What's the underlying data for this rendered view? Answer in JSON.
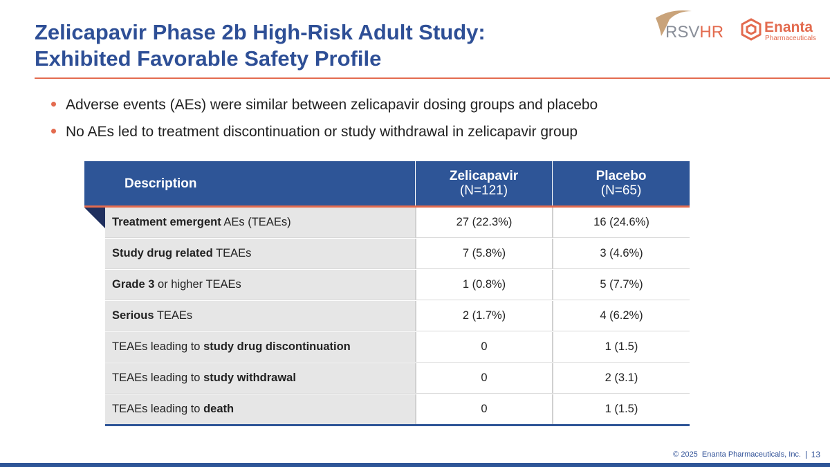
{
  "header": {
    "title": [
      "Zelicapavir Phase 2b High-Risk Adult Study:",
      "Exhibited Favorable Safety Profile"
    ],
    "logos": {
      "rsvhr": [
        "RSV",
        "HR"
      ],
      "enanta": {
        "name": "Enanta",
        "sub": "Pharmaceuticals"
      }
    }
  },
  "bullets": [
    "Adverse events (AEs) were similar between zelicapavir dosing groups and placebo",
    "No AEs led to treatment discontinuation or study withdrawal in zelicapavir group"
  ],
  "table": {
    "columns": [
      {
        "label": "Description"
      },
      {
        "label": "Zelicapavir",
        "sub": "(N=121)"
      },
      {
        "label": "Placebo",
        "sub": "(N=65)"
      }
    ],
    "rows": [
      {
        "description": [
          {
            "text": "Treatment emergent",
            "bold": true
          },
          {
            "text": " AEs (TEAEs)",
            "bold": false
          }
        ],
        "values": [
          "27 (22.3%)",
          "16 (24.6%)"
        ]
      },
      {
        "description": [
          {
            "text": "Study drug related",
            "bold": true
          },
          {
            "text": " TEAEs",
            "bold": false
          }
        ],
        "values": [
          "7 (5.8%)",
          "3 (4.6%)"
        ]
      },
      {
        "description": [
          {
            "text": "Grade 3",
            "bold": true
          },
          {
            "text": " or higher TEAEs",
            "bold": false
          }
        ],
        "values": [
          "1 (0.8%)",
          "5 (7.7%)"
        ]
      },
      {
        "description": [
          {
            "text": "Serious",
            "bold": true
          },
          {
            "text": " TEAEs",
            "bold": false
          }
        ],
        "values": [
          "2 (1.7%)",
          "4 (6.2%)"
        ]
      },
      {
        "description": [
          {
            "text": "TEAEs leading to ",
            "bold": false
          },
          {
            "text": "study drug discontinuation",
            "bold": true
          }
        ],
        "values": [
          "0",
          "1 (1.5)"
        ]
      },
      {
        "description": [
          {
            "text": "TEAEs leading to ",
            "bold": false
          },
          {
            "text": "study withdrawal",
            "bold": true
          }
        ],
        "values": [
          "0",
          "2 (3.1)"
        ]
      },
      {
        "description": [
          {
            "text": "TEAEs leading to ",
            "bold": false
          },
          {
            "text": "death",
            "bold": true
          }
        ],
        "values": [
          "0",
          "1 (1.5)"
        ]
      }
    ]
  },
  "footer": {
    "copyright": "© 2025  Enanta Pharmaceuticals, Inc.",
    "page": "13"
  }
}
